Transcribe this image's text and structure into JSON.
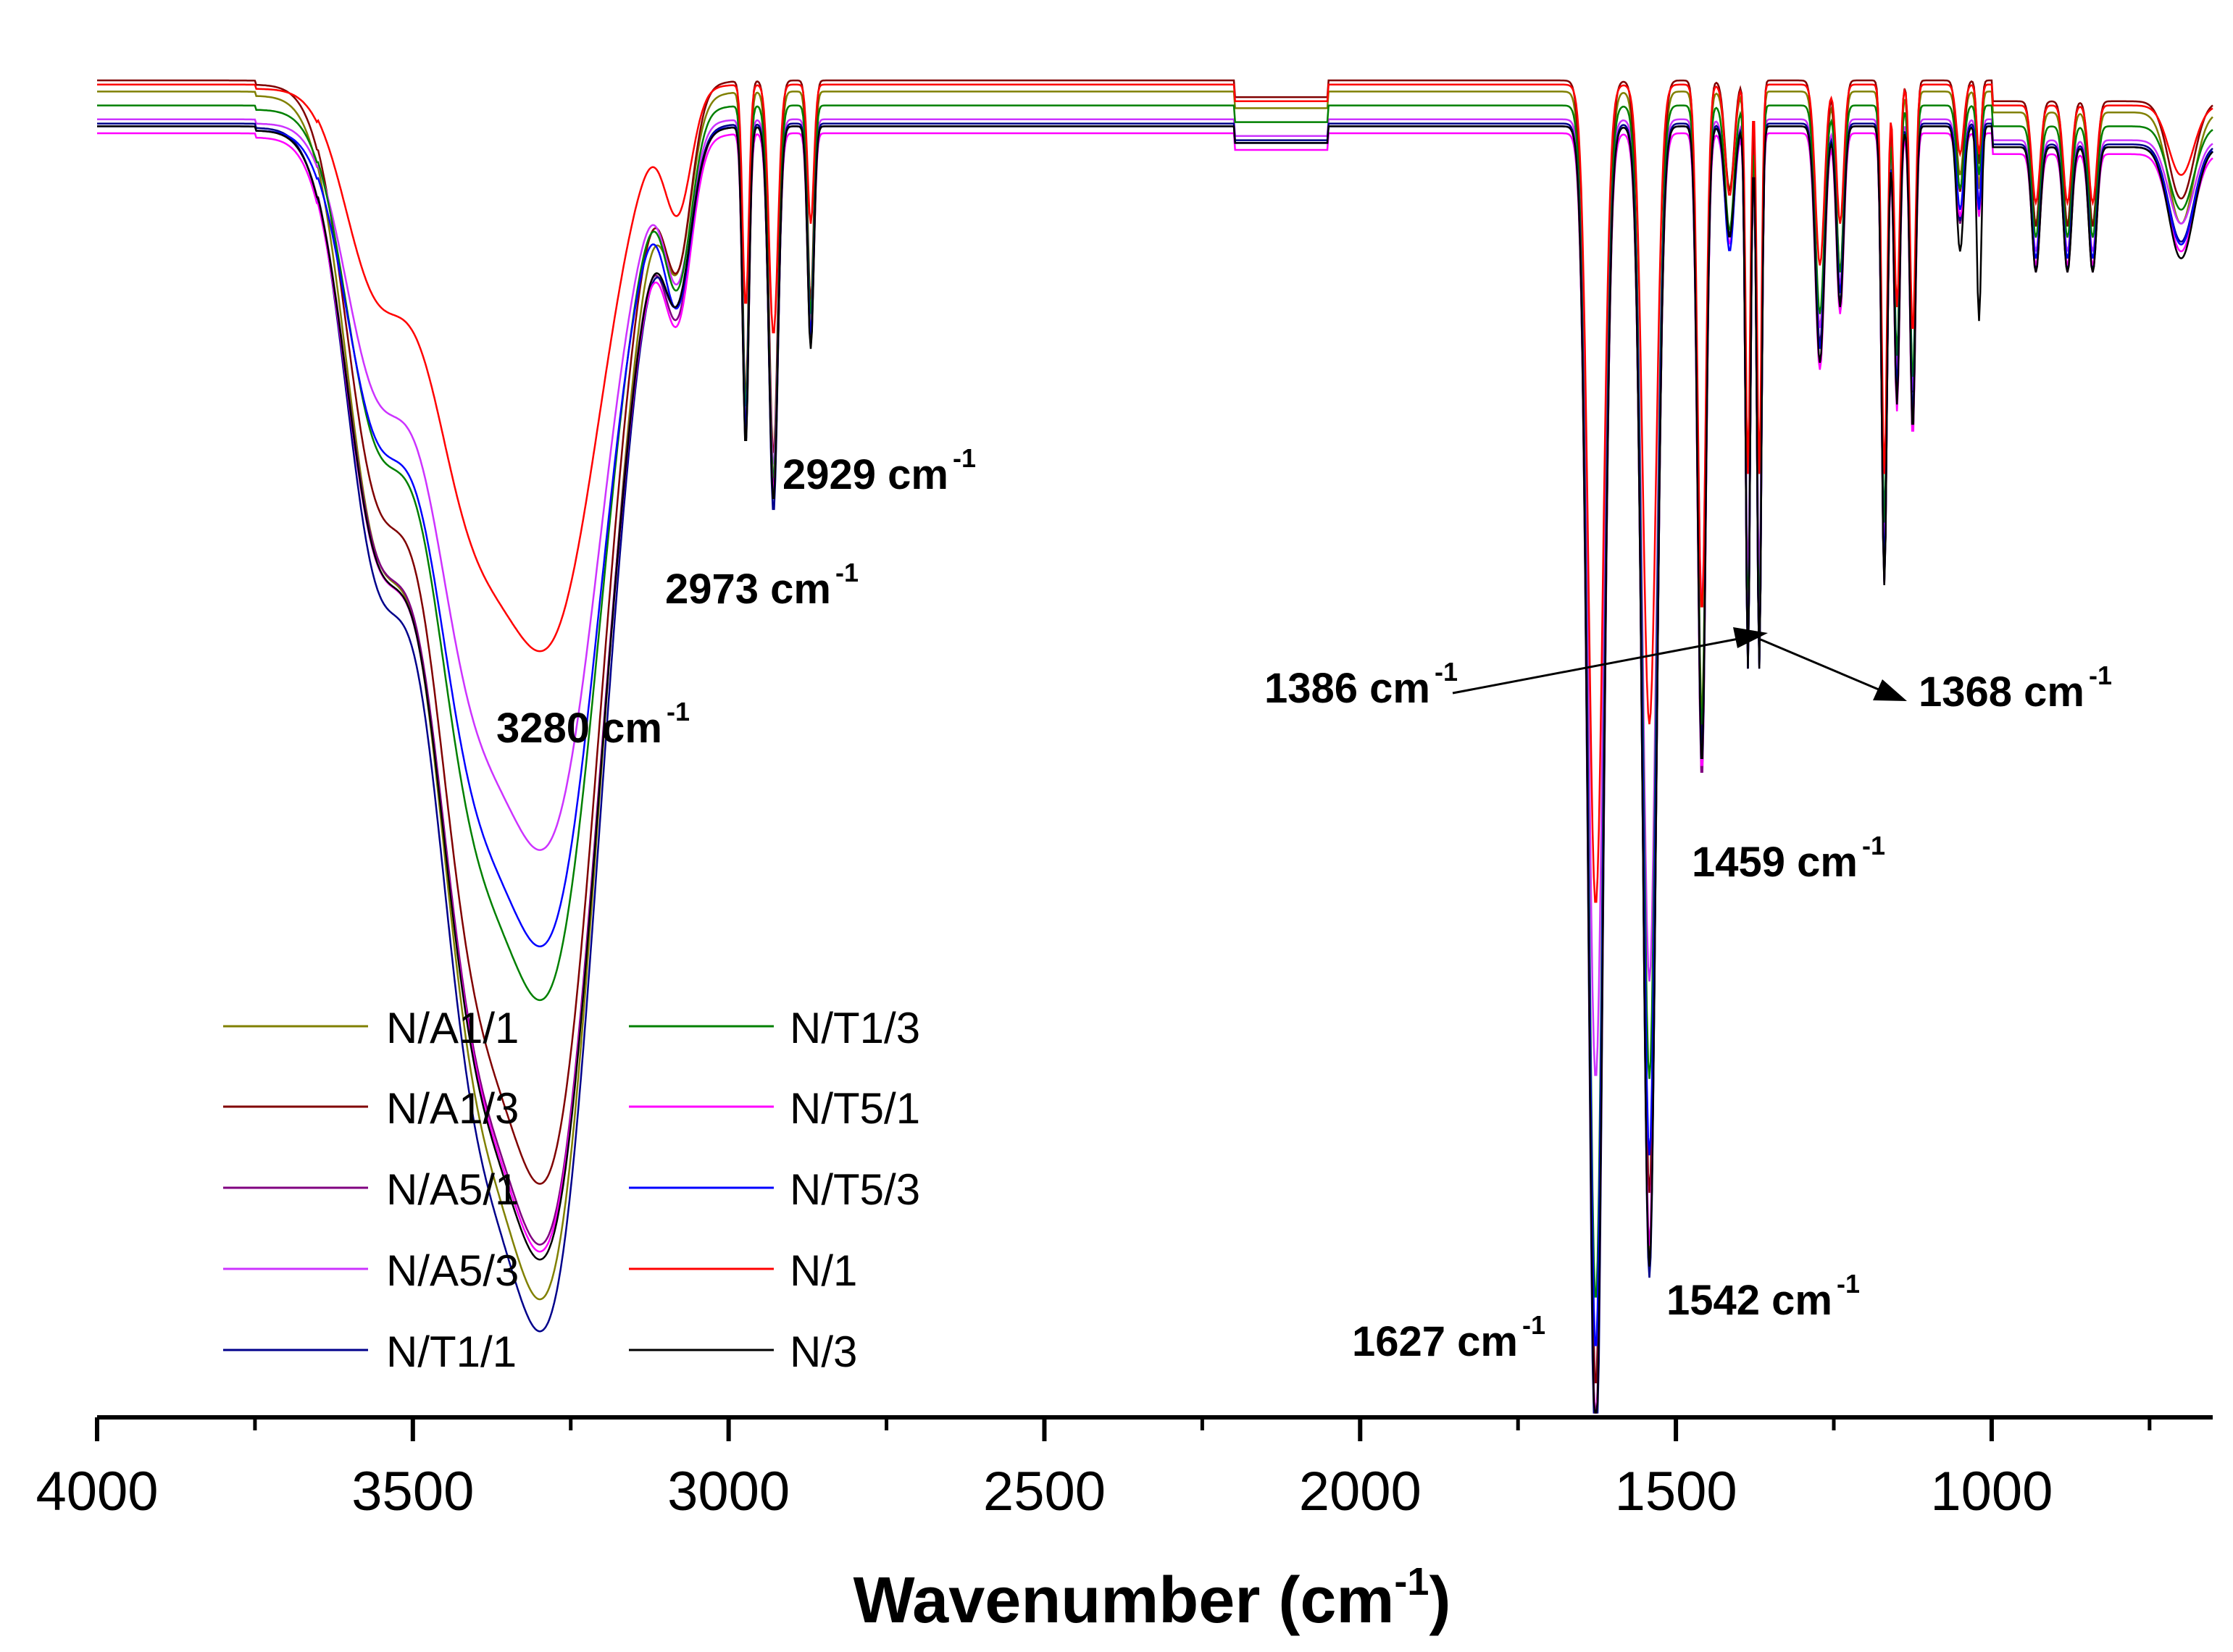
{
  "chart_data": {
    "type": "line",
    "title": "",
    "xlabel": "Wavenumber (cm",
    "xlabel_sup": "-1",
    "xlabel_close": ")",
    "ylabel": "",
    "xlim": [
      4000,
      650
    ],
    "x_reversed": true,
    "ylim": [
      0,
      100
    ],
    "y_axis_note": "relative transmittance (no y-axis shown)",
    "xticks": [
      4000,
      3500,
      3000,
      2500,
      2000,
      1500,
      1000
    ],
    "xtick_labels": [
      "4000",
      "3500",
      "3000",
      "2500",
      "2000",
      "1500",
      "1000"
    ],
    "minor_xticks": [
      3750,
      3250,
      2750,
      2250,
      1750,
      1250,
      750
    ],
    "annotations": [
      {
        "text": "3280 cm",
        "sup": "-1",
        "x": 3280
      },
      {
        "text": "2973 cm",
        "sup": "-1",
        "x": 2973
      },
      {
        "text": "2929 cm",
        "sup": "-1",
        "x": 2929
      },
      {
        "text": "1386 cm",
        "sup": "-1",
        "x": 1386
      },
      {
        "text": "1368 cm",
        "sup": "-1",
        "x": 1368
      },
      {
        "text": "1459 cm",
        "sup": "-1",
        "x": 1459
      },
      {
        "text": "1542 cm",
        "sup": "-1",
        "x": 1542
      },
      {
        "text": "1627 cm",
        "sup": "-1",
        "x": 1627
      }
    ],
    "peaks_x": [
      3280,
      3080,
      2973,
      2929,
      2870,
      1627,
      1542,
      1459,
      1415,
      1386,
      1368,
      1272,
      1240,
      1170,
      1150,
      1125,
      1050,
      1020,
      930,
      880,
      840,
      700
    ],
    "series": [
      {
        "name": "N/A1/1",
        "color": "#808000",
        "base": 95.5,
        "peaks": [
          81,
          10,
          24,
          28,
          17,
          97,
          84,
          45,
          7,
          38,
          38,
          17,
          13,
          32,
          20,
          22,
          6,
          7,
          8,
          8,
          8,
          8
        ]
      },
      {
        "name": "N/A1/3",
        "color": "#800000",
        "base": 96.3,
        "peaks": [
          74,
          11,
          23,
          27,
          16,
          94,
          80,
          48,
          8,
          40,
          40,
          19,
          15,
          33,
          21,
          23,
          8,
          6,
          9,
          9,
          9,
          7
        ]
      },
      {
        "name": "N/A5/1",
        "color": "#800080",
        "base": 93.0,
        "peaks": [
          75,
          11,
          22,
          26,
          15,
          94,
          82,
          47,
          8,
          39,
          39,
          17,
          13,
          33,
          20,
          22,
          7,
          6,
          9,
          9,
          9,
          7
        ]
      },
      {
        "name": "N/A5/3",
        "color": "#cc33ff",
        "base": 93.5,
        "peaks": [
          49,
          10,
          21,
          25,
          14,
          69,
          62,
          35,
          9,
          34,
          34,
          15,
          12,
          30,
          18,
          20,
          7,
          6,
          8,
          8,
          8,
          6
        ]
      },
      {
        "name": "N/T1/1",
        "color": "#00008b",
        "base": 93.2,
        "peaks": [
          81,
          10,
          23,
          28,
          16,
          98,
          83,
          45,
          8,
          39,
          39,
          16,
          13,
          33,
          20,
          22,
          7,
          6,
          9,
          9,
          9,
          7
        ]
      },
      {
        "name": "N/T1/3",
        "color": "#008000",
        "base": 94.5,
        "peaks": [
          60,
          11,
          22,
          27,
          15,
          86,
          70,
          45,
          9,
          38,
          38,
          15,
          12,
          30,
          18,
          20,
          6,
          5,
          8,
          8,
          8,
          6
        ]
      },
      {
        "name": "N/T5/1",
        "color": "#ff00ff",
        "base": 92.5,
        "peaks": [
          75,
          11,
          22,
          26,
          15,
          94,
          80,
          46,
          8,
          38,
          38,
          17,
          13,
          32,
          20,
          22,
          6,
          6,
          8,
          8,
          8,
          7
        ]
      },
      {
        "name": "N/T5/3",
        "color": "#0000ff",
        "base": 93.0,
        "peaks": [
          55,
          11,
          22,
          27,
          15,
          88,
          74,
          46,
          9,
          39,
          39,
          16,
          12,
          32,
          19,
          21,
          6,
          6,
          8,
          8,
          8,
          7
        ]
      },
      {
        "name": "N/1",
        "color": "#ff0000",
        "base": 96.0,
        "peaks": [
          38,
          8,
          16,
          18,
          10,
          59,
          46,
          38,
          8,
          28,
          28,
          13,
          10,
          28,
          16,
          18,
          5,
          5,
          7,
          7,
          7,
          5
        ]
      },
      {
        "name": "N/3",
        "color": "#000000",
        "base": 93.0,
        "peaks": [
          76,
          10,
          23,
          27,
          16,
          95,
          82,
          46,
          8,
          39,
          39,
          17,
          13,
          33,
          20,
          22,
          9,
          14,
          9,
          9,
          9,
          8
        ]
      }
    ],
    "legend": {
      "position": "bottom-left",
      "columns": 2
    }
  }
}
